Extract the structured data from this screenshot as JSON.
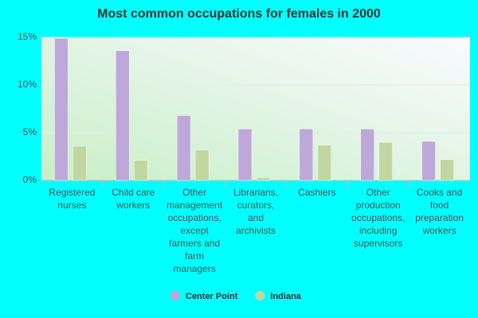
{
  "chart_data": {
    "type": "bar",
    "title": "Most common occupations for females in 2000",
    "categories": [
      "Registered nurses",
      "Child care workers",
      "Other management occupations, except farmers and farm managers",
      "Librarians, curators, and archivists",
      "Cashiers",
      "Other production occupations, including supervisors",
      "Cooks and food preparation workers"
    ],
    "series": [
      {
        "name": "Center Point",
        "color": "#bea8da",
        "values": [
          14.9,
          13.6,
          6.8,
          5.4,
          5.4,
          5.4,
          4.1
        ]
      },
      {
        "name": "Indiana",
        "color": "#c2d6a2",
        "values": [
          3.6,
          2.1,
          3.2,
          0.3,
          3.7,
          4.0,
          2.2
        ]
      }
    ],
    "ylim": [
      0,
      15
    ],
    "yticks": [
      {
        "value": 0,
        "label": "0%"
      },
      {
        "value": 5,
        "label": "5%"
      },
      {
        "value": 10,
        "label": "10%"
      },
      {
        "value": 15,
        "label": "15%"
      }
    ],
    "grid": true
  }
}
